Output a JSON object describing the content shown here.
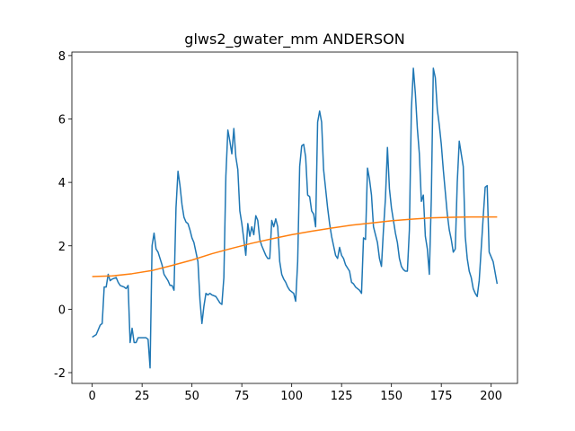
{
  "chart_data": {
    "type": "line",
    "title": "glws2_gwater_mm ANDERSON",
    "xlim": [
      -10.2,
      213.2
    ],
    "xticks": [
      0,
      25,
      50,
      75,
      100,
      125,
      150,
      175,
      200
    ],
    "ylim": [
      -2.34,
      8.11
    ],
    "yticks": [
      -2,
      0,
      2,
      4,
      6,
      8
    ],
    "series": [
      {
        "color": "#1f77b4",
        "x": [
          0,
          2,
          4,
          5,
          6,
          7,
          8,
          9,
          10,
          12,
          13,
          14,
          16,
          17,
          18,
          19,
          20,
          21,
          22,
          23,
          25,
          27,
          28,
          29,
          30,
          31,
          32,
          33,
          35,
          36,
          38,
          39,
          40,
          41,
          42,
          43,
          44,
          45,
          46,
          47,
          48,
          49,
          50,
          51,
          52,
          53,
          54,
          55,
          56,
          57,
          58,
          59,
          60,
          62,
          63,
          64,
          65,
          66,
          67,
          68,
          69,
          70,
          71,
          72,
          73,
          74,
          75,
          76,
          77,
          78,
          79,
          80,
          81,
          82,
          83,
          84,
          85,
          87,
          88,
          89,
          90,
          91,
          92,
          93,
          94,
          95,
          96,
          97,
          98,
          99,
          100,
          101,
          102,
          103,
          104,
          105,
          106,
          107,
          108,
          109,
          110,
          111,
          112,
          113,
          114,
          115,
          116,
          117,
          118,
          119,
          120,
          121,
          122,
          123,
          124,
          125,
          126,
          127,
          128,
          129,
          130,
          131,
          132,
          134,
          135,
          136,
          137,
          138,
          139,
          140,
          141,
          142,
          143,
          144,
          145,
          146,
          147,
          148,
          149,
          150,
          151,
          152,
          153,
          154,
          155,
          156,
          157,
          158,
          159,
          160,
          161,
          162,
          163,
          164,
          165,
          166,
          167,
          168,
          169,
          170,
          171,
          172,
          173,
          174,
          175,
          176,
          177,
          178,
          179,
          180,
          181,
          182,
          183,
          184,
          185,
          186,
          187,
          188,
          189,
          190,
          191,
          192,
          193,
          194,
          195,
          196,
          197,
          198,
          199,
          201,
          203
        ],
        "values": [
          -0.88,
          -0.8,
          -0.5,
          -0.45,
          0.7,
          0.7,
          1.1,
          0.9,
          0.95,
          1.0,
          0.85,
          0.75,
          0.7,
          0.65,
          0.75,
          -1.05,
          -0.6,
          -1.05,
          -1.05,
          -0.9,
          -0.9,
          -0.9,
          -0.95,
          -1.85,
          2.0,
          2.4,
          1.9,
          1.8,
          1.4,
          1.1,
          0.9,
          0.75,
          0.75,
          0.6,
          3.2,
          4.35,
          3.9,
          3.3,
          2.9,
          2.75,
          2.7,
          2.5,
          2.25,
          2.1,
          1.8,
          1.5,
          0.3,
          -0.45,
          0.1,
          0.5,
          0.45,
          0.5,
          0.45,
          0.4,
          0.3,
          0.2,
          0.15,
          1.0,
          4.2,
          5.65,
          5.3,
          4.9,
          5.7,
          4.8,
          4.4,
          3.1,
          2.7,
          2.2,
          1.7,
          2.7,
          2.3,
          2.6,
          2.35,
          2.95,
          2.8,
          2.2,
          2.0,
          1.7,
          1.6,
          1.6,
          2.8,
          2.6,
          2.85,
          2.6,
          1.5,
          1.1,
          0.95,
          0.85,
          0.7,
          0.6,
          0.55,
          0.5,
          0.25,
          1.5,
          4.5,
          5.15,
          5.2,
          4.8,
          3.6,
          3.55,
          3.1,
          3.0,
          2.6,
          5.9,
          6.25,
          5.9,
          4.4,
          3.8,
          3.2,
          2.7,
          2.3,
          2.0,
          1.7,
          1.6,
          1.95,
          1.7,
          1.6,
          1.4,
          1.3,
          1.2,
          0.85,
          0.8,
          0.7,
          0.6,
          0.5,
          2.25,
          2.2,
          4.45,
          4.1,
          3.6,
          2.6,
          2.35,
          2.1,
          1.6,
          1.35,
          2.5,
          3.5,
          5.1,
          3.8,
          3.2,
          2.8,
          2.4,
          2.1,
          1.6,
          1.35,
          1.25,
          1.2,
          1.2,
          2.5,
          6.3,
          7.6,
          6.8,
          5.7,
          4.9,
          3.4,
          3.6,
          2.3,
          1.9,
          1.1,
          3.5,
          7.6,
          7.3,
          6.3,
          5.8,
          5.2,
          4.4,
          3.7,
          3.0,
          2.5,
          2.2,
          1.8,
          1.9,
          4.0,
          5.3,
          4.9,
          4.5,
          2.3,
          1.6,
          1.2,
          1.0,
          0.65,
          0.5,
          0.4,
          0.9,
          1.9,
          2.9,
          3.85,
          3.9,
          1.8,
          1.5,
          0.8
        ]
      },
      {
        "color": "#ff7f0e",
        "x": [
          0,
          10,
          20,
          30,
          40,
          50,
          60,
          70,
          80,
          90,
          100,
          110,
          120,
          130,
          140,
          150,
          160,
          170,
          180,
          190,
          203
        ],
        "values": [
          1.03,
          1.05,
          1.12,
          1.22,
          1.38,
          1.55,
          1.75,
          1.92,
          2.08,
          2.22,
          2.35,
          2.46,
          2.56,
          2.65,
          2.72,
          2.79,
          2.84,
          2.88,
          2.9,
          2.91,
          2.91
        ]
      }
    ]
  }
}
